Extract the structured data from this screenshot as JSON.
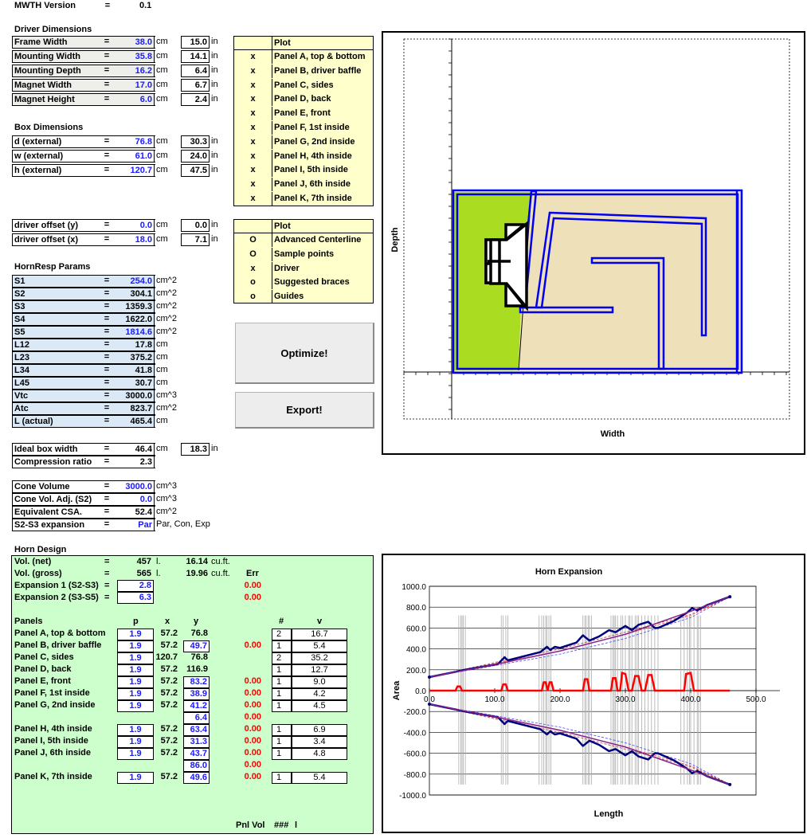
{
  "header": {
    "version_label": "MWTH Version",
    "eq": "=",
    "version": "0.1"
  },
  "driver": {
    "title": "Driver Dimensions",
    "rows": [
      {
        "label": "Frame Width",
        "value": "38.0",
        "unit": "cm",
        "in": "15.0",
        "in_unit": "in"
      },
      {
        "label": "Mounting Width",
        "value": "35.8",
        "unit": "cm",
        "in": "14.1",
        "in_unit": "in"
      },
      {
        "label": "Mounting Depth",
        "value": "16.2",
        "unit": "cm",
        "in": "6.4",
        "in_unit": "in"
      },
      {
        "label": "Magnet Width",
        "value": "17.0",
        "unit": "cm",
        "in": "6.7",
        "in_unit": "in"
      },
      {
        "label": "Magnet Height",
        "value": "6.0",
        "unit": "cm",
        "in": "2.4",
        "in_unit": "in"
      }
    ]
  },
  "box": {
    "title": "Box Dimensions",
    "rows": [
      {
        "label": "d (external)",
        "value": "76.8",
        "unit": "cm",
        "in": "30.3",
        "in_unit": "in"
      },
      {
        "label": "w (external)",
        "value": "61.0",
        "unit": "cm",
        "in": "24.0",
        "in_unit": "in"
      },
      {
        "label": "h (external)",
        "value": "120.7",
        "unit": "cm",
        "in": "47.5",
        "in_unit": "in"
      }
    ]
  },
  "offsets": {
    "rows": [
      {
        "label": "driver offset (y)",
        "value": "0.0",
        "unit": "cm",
        "in": "0.0",
        "in_unit": "in"
      },
      {
        "label": "driver offset (x)",
        "value": "18.0",
        "unit": "cm",
        "in": "7.1",
        "in_unit": "in"
      }
    ]
  },
  "plot_panels": {
    "header": "Plot",
    "items": [
      {
        "mark": "x",
        "label": "Panel A, top & bottom"
      },
      {
        "mark": "x",
        "label": "Panel B, driver baffle"
      },
      {
        "mark": "x",
        "label": "Panel C, sides"
      },
      {
        "mark": "x",
        "label": "Panel D, back"
      },
      {
        "mark": "x",
        "label": "Panel E, front"
      },
      {
        "mark": "x",
        "label": "Panel F, 1st inside"
      },
      {
        "mark": "x",
        "label": "Panel G, 2nd inside"
      },
      {
        "mark": "x",
        "label": "Panel H, 4th inside"
      },
      {
        "mark": "x",
        "label": "Panel I, 5th inside"
      },
      {
        "mark": "x",
        "label": "Panel J, 6th inside"
      },
      {
        "mark": "x",
        "label": "Panel K, 7th inside"
      }
    ]
  },
  "plot_options": {
    "header": "Plot",
    "items": [
      {
        "mark": "O",
        "label": "Advanced Centerline"
      },
      {
        "mark": "O",
        "label": "Sample points"
      },
      {
        "mark": "x",
        "label": "Driver"
      },
      {
        "mark": "o",
        "label": "Suggested braces"
      },
      {
        "mark": "o",
        "label": "Guides"
      }
    ]
  },
  "hornresp": {
    "title": "HornResp Params",
    "rows": [
      {
        "label": "S1",
        "value": "254.0",
        "unit": "cm^2"
      },
      {
        "label": "S2",
        "value": "304.1",
        "unit": "cm^2"
      },
      {
        "label": "S3",
        "value": "1359.3",
        "unit": "cm^2"
      },
      {
        "label": "S4",
        "value": "1622.0",
        "unit": "cm^2"
      },
      {
        "label": "S5",
        "value": "1814.6",
        "unit": "cm^2"
      },
      {
        "label": "L12",
        "value": "17.8",
        "unit": "cm"
      },
      {
        "label": "L23",
        "value": "375.2",
        "unit": "cm"
      },
      {
        "label": "L34",
        "value": "41.8",
        "unit": "cm"
      },
      {
        "label": "L45",
        "value": "30.7",
        "unit": "cm"
      },
      {
        "label": "Vtc",
        "value": "3000.0",
        "unit": "cm^3"
      },
      {
        "label": "Atc",
        "value": "823.7",
        "unit": "cm^2"
      },
      {
        "label": "L (actual)",
        "value": "465.4",
        "unit": "cm"
      }
    ]
  },
  "buttons": {
    "optimize": "Optimize!",
    "export": "Export!"
  },
  "ideal": {
    "rows": [
      {
        "label": "Ideal box width",
        "value": "46.4",
        "unit": "cm",
        "in": "18.3",
        "in_unit": "in"
      },
      {
        "label": "Compression ratio",
        "value": "2.3"
      }
    ]
  },
  "cone": {
    "rows": [
      {
        "label": "Cone Volume",
        "value": "3000.0",
        "unit": "cm^3"
      },
      {
        "label": "Cone Vol. Adj. (S2)",
        "value": "0.0",
        "unit": "cm^3"
      },
      {
        "label": "Equivalent CSA.",
        "value": "52.4",
        "unit": "cm^2"
      },
      {
        "label": "S2-S3 expansion",
        "value": "Par",
        "unit": "Par, Con, Exp"
      }
    ]
  },
  "horn": {
    "title": "Horn Design",
    "vol_net": {
      "label": "Vol. (net)",
      "value": "457",
      "unit": "l.",
      "cuft": "16.14",
      "cuft_unit": "cu.ft."
    },
    "vol_gross": {
      "label": "Vol. (gross)",
      "value": "565",
      "unit": "l.",
      "cuft": "19.96",
      "cuft_unit": "cu.ft."
    },
    "err_header": "Err",
    "exp1": {
      "label": "Expansion 1 (S2-S3)",
      "value": "2.8",
      "err": "0.00"
    },
    "exp2": {
      "label": "Expansion 2 (S3-S5)",
      "value": "6.3",
      "err": "0.00"
    },
    "cols": {
      "panels": "Panels",
      "p": "p",
      "x": "x",
      "y": "y",
      "n": "#",
      "v": "v"
    },
    "panels": [
      {
        "label": "Panel A, top & bottom",
        "p": "1.9",
        "x": "57.2",
        "y": "76.8",
        "ybox": false,
        "err": "",
        "n": "2",
        "v": "16.7"
      },
      {
        "label": "Panel B, driver baffle",
        "p": "1.9",
        "x": "57.2",
        "y": "49.7",
        "ybox": true,
        "err": "0.00",
        "n": "1",
        "v": "5.4"
      },
      {
        "label": "Panel C, sides",
        "p": "1.9",
        "x": "120.7",
        "y": "76.8",
        "ybox": false,
        "err": "",
        "n": "2",
        "v": "35.2"
      },
      {
        "label": "Panel D, back",
        "p": "1.9",
        "x": "57.2",
        "y": "116.9",
        "ybox": false,
        "err": "",
        "n": "1",
        "v": "12.7"
      },
      {
        "label": "Panel E, front",
        "p": "1.9",
        "x": "57.2",
        "y": "83.2",
        "ybox": true,
        "err": "0.00",
        "n": "1",
        "v": "9.0"
      },
      {
        "label": "Panel F, 1st inside",
        "p": "1.9",
        "x": "57.2",
        "y": "38.9",
        "ybox": true,
        "err": "0.00",
        "n": "1",
        "v": "4.2"
      },
      {
        "label": "Panel G, 2nd inside",
        "p": "1.9",
        "x": "57.2",
        "y": "41.2",
        "ybox": true,
        "err": "0.00",
        "n": "1",
        "v": "4.5"
      },
      {
        "label": "",
        "p": "",
        "x": "",
        "y": "6.4",
        "ybox": true,
        "err": "0.00",
        "n": "",
        "v": ""
      },
      {
        "label": "Panel H, 4th inside",
        "p": "1.9",
        "x": "57.2",
        "y": "63.4",
        "ybox": true,
        "err": "0.00",
        "n": "1",
        "v": "6.9"
      },
      {
        "label": "Panel I, 5th inside",
        "p": "1.9",
        "x": "57.2",
        "y": "31.3",
        "ybox": true,
        "err": "0.00",
        "n": "1",
        "v": "3.4"
      },
      {
        "label": "Panel J, 6th inside",
        "p": "1.9",
        "x": "57.2",
        "y": "43.7",
        "ybox": true,
        "err": "0.00",
        "n": "1",
        "v": "4.8"
      },
      {
        "label": "",
        "p": "",
        "x": "",
        "y": "86.0",
        "ybox": true,
        "err": "0.00",
        "n": "",
        "v": ""
      },
      {
        "label": "Panel K, 7th inside",
        "p": "1.9",
        "x": "57.2",
        "y": "49.6",
        "ybox": true,
        "err": "0.00",
        "n": "1",
        "v": "5.4"
      }
    ],
    "pnl_vol": "Pnl Vol",
    "pnl_vol_value": "###",
    "pnl_vol_unit": "l"
  },
  "layout_chart": {
    "xlabel": "Width",
    "ylabel": "Depth"
  },
  "chart_data": {
    "type": "line",
    "title": "Horn Expansion",
    "xlabel": "Length",
    "ylabel": "Area",
    "xlim": [
      0,
      500
    ],
    "ylim": [
      -1000,
      1000
    ],
    "xticks": [
      "0.0",
      "100.0",
      "200.0",
      "300.0",
      "400.0",
      "500.0"
    ],
    "yticks": [
      "1000.0",
      "800.0",
      "600.0",
      "400.0",
      "200.0",
      "0.0",
      "-200.0",
      "-400.0",
      "-600.0",
      "-800.0",
      "-1000.0"
    ],
    "grid": true,
    "series": [
      {
        "color": "#000080",
        "x": [
          0,
          40,
          50,
          105,
          115,
          120,
          170,
          180,
          185,
          192,
          200,
          225,
          235,
          245,
          260,
          275,
          285,
          300,
          310,
          320,
          335,
          345,
          350,
          375,
          395,
          402,
          410,
          425,
          460
        ],
        "y": [
          130,
          180,
          195,
          255,
          320,
          290,
          370,
          420,
          390,
          420,
          410,
          460,
          530,
          480,
          520,
          580,
          560,
          620,
          580,
          630,
          660,
          600,
          600,
          670,
          750,
          790,
          770,
          820,
          900
        ]
      },
      {
        "color": "#ff0000",
        "x": [
          0,
          40,
          43,
          47,
          50,
          110,
          113,
          117,
          120,
          172,
          175,
          178,
          181,
          184,
          187,
          190,
          235,
          238,
          242,
          245,
          278,
          281,
          285,
          288,
          292,
          295,
          300,
          305,
          310,
          315,
          320,
          325,
          330,
          335,
          340,
          345,
          350,
          390,
          393,
          400,
          405,
          410,
          420,
          460
        ],
        "y": [
          0,
          0,
          40,
          40,
          0,
          0,
          60,
          60,
          0,
          0,
          80,
          80,
          0,
          80,
          80,
          0,
          0,
          110,
          110,
          0,
          0,
          120,
          120,
          0,
          0,
          170,
          160,
          0,
          0,
          140,
          140,
          0,
          0,
          150,
          150,
          0,
          0,
          0,
          160,
          170,
          0,
          0,
          0,
          0
        ]
      }
    ],
    "vlines_x": [
      45,
      48,
      50,
      52,
      55,
      110,
      113,
      117,
      120,
      168,
      172,
      175,
      178,
      180,
      183,
      186,
      235,
      238,
      240,
      243,
      245,
      248,
      278,
      281,
      283,
      285,
      288,
      293,
      296,
      300,
      305,
      307,
      310,
      315,
      318,
      320,
      325,
      330,
      335,
      340,
      345,
      350,
      385,
      390,
      395,
      398,
      400,
      405,
      410,
      412,
      415
    ]
  }
}
